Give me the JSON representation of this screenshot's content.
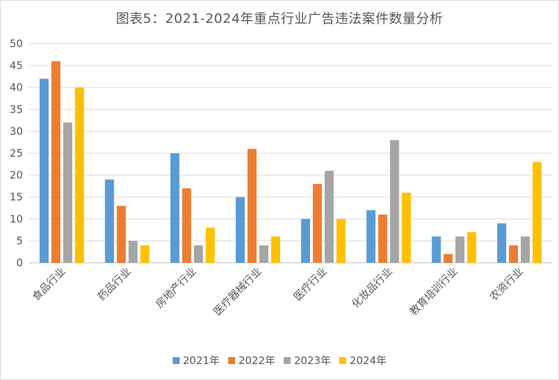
{
  "chart_data": {
    "type": "bar",
    "title": "图表5：2021-2024年重点行业广告违法案件数量分析",
    "categories": [
      "食品行业",
      "药品行业",
      "房地产行业",
      "医疗器械行业",
      "医疗行业",
      "化妆品行业",
      "教育培训行业",
      "农资行业"
    ],
    "series": [
      {
        "name": "2021年",
        "color": "#5B9BD5",
        "values": [
          42,
          19,
          25,
          15,
          10,
          12,
          6,
          9
        ]
      },
      {
        "name": "2022年",
        "color": "#ED7D31",
        "values": [
          46,
          13,
          17,
          26,
          18,
          11,
          2,
          4
        ]
      },
      {
        "name": "2023年",
        "color": "#A5A5A5",
        "values": [
          32,
          5,
          4,
          4,
          21,
          28,
          6,
          6
        ]
      },
      {
        "name": "2024年",
        "color": "#FFC000",
        "values": [
          40,
          4,
          8,
          6,
          10,
          16,
          7,
          23
        ]
      }
    ],
    "yticks": [
      "0",
      "5",
      "10",
      "15",
      "20",
      "25",
      "30",
      "35",
      "40",
      "45",
      "50"
    ],
    "ylim": [
      0,
      50
    ],
    "grid": true,
    "legend": "bottom"
  }
}
